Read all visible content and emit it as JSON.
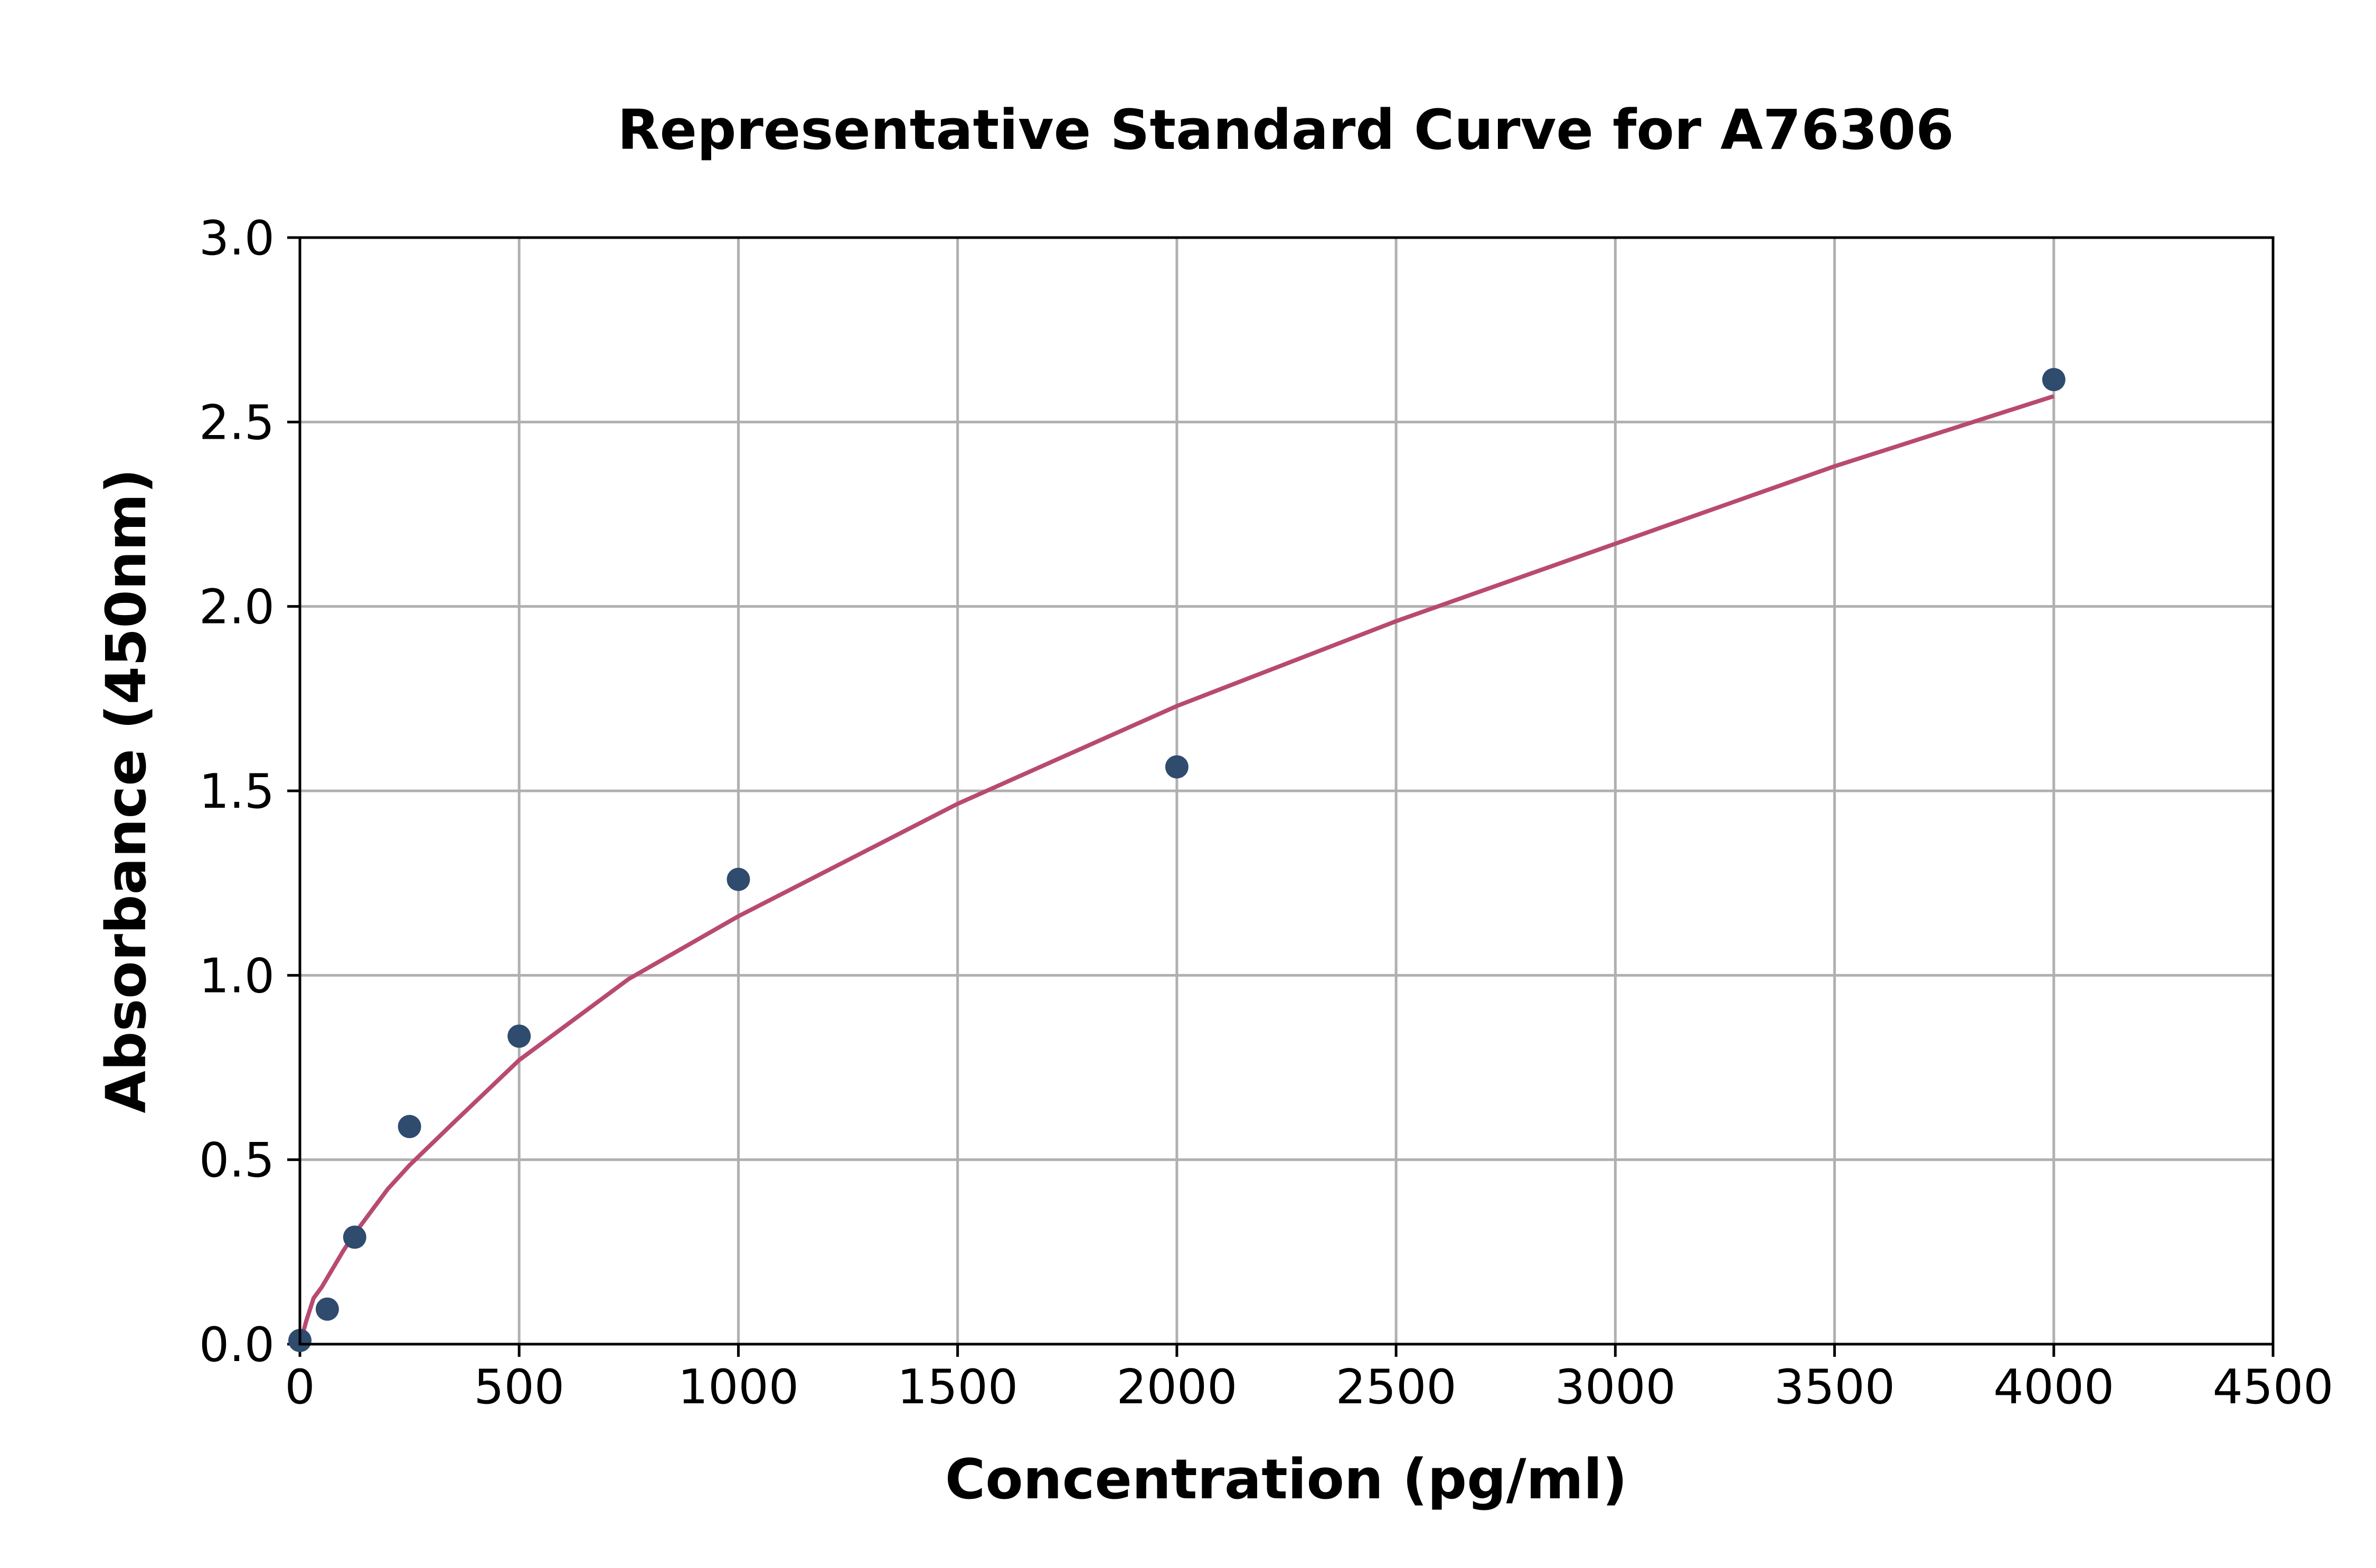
{
  "chart_data": {
    "type": "scatter",
    "title": "Representative Standard Curve for A76306",
    "xlabel": "Concentration (pg/ml)",
    "ylabel": "Absorbance (450nm)",
    "xlim": [
      0,
      4500
    ],
    "ylim": [
      0,
      3.0
    ],
    "xticks": [
      0,
      500,
      1000,
      1500,
      2000,
      2500,
      3000,
      3500,
      4000,
      4500
    ],
    "xtick_labels": [
      "0",
      "500",
      "1000",
      "1500",
      "2000",
      "2500",
      "3000",
      "3500",
      "4000",
      "4500"
    ],
    "yticks": [
      0,
      0.5,
      1.0,
      1.5,
      2.0,
      2.5,
      3.0
    ],
    "ytick_labels": [
      "0.0",
      "0.5",
      "1.0",
      "1.5",
      "2.0",
      "2.5",
      "3.0"
    ],
    "grid": true,
    "series": [
      {
        "kind": "points",
        "x": [
          0,
          62.5,
          125,
          250,
          500,
          1000,
          2000,
          4000
        ],
        "y": [
          0.01,
          0.095,
          0.29,
          0.59,
          0.835,
          1.26,
          1.565,
          2.615
        ],
        "color": "#2f4b6e"
      },
      {
        "kind": "fit-curve",
        "x": [
          0,
          15,
          31.25,
          50,
          62.5,
          100,
          125,
          200,
          250,
          350,
          500,
          750,
          1000,
          1500,
          2000,
          2500,
          3000,
          3500,
          4000
        ],
        "y": [
          0.0,
          0.065,
          0.125,
          0.155,
          0.18,
          0.255,
          0.3,
          0.42,
          0.485,
          0.6,
          0.77,
          0.99,
          1.16,
          1.465,
          1.73,
          1.96,
          2.17,
          2.38,
          2.57
        ],
        "color": "#b84a72"
      }
    ]
  }
}
